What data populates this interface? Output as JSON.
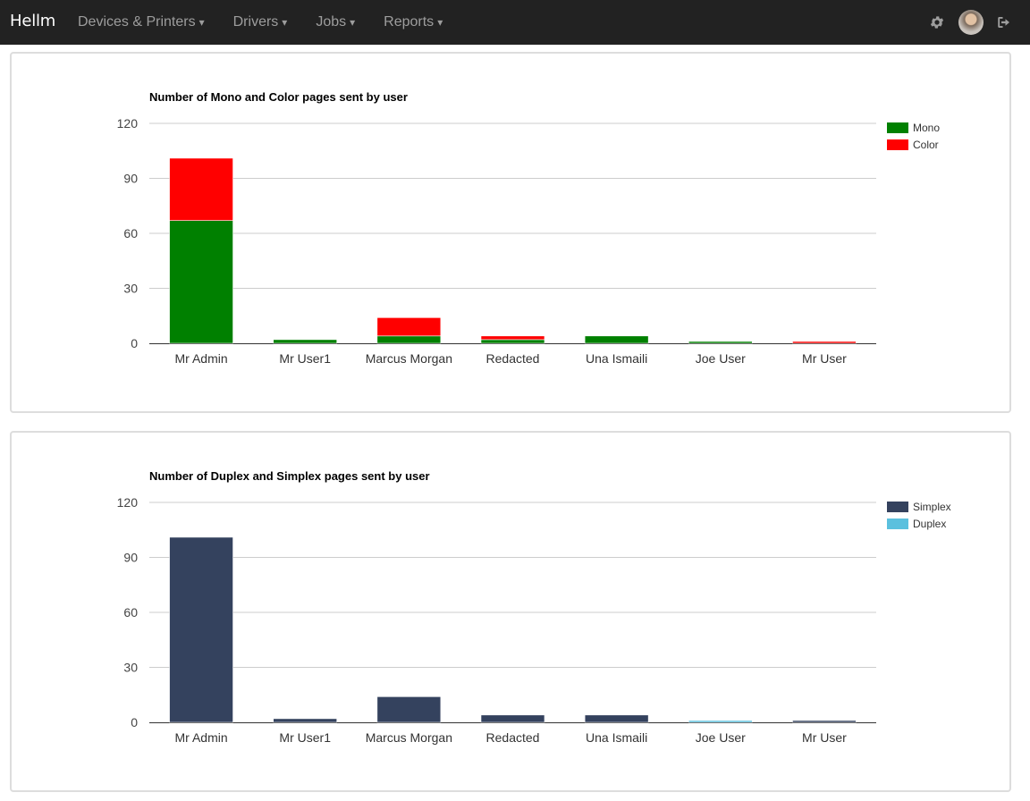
{
  "app": {
    "brand": "Hellm",
    "menu": [
      {
        "label": "Devices & Printers",
        "caret": "▾"
      },
      {
        "label": "Drivers",
        "caret": "▾"
      },
      {
        "label": "Jobs",
        "caret": "▾"
      },
      {
        "label": "Reports",
        "caret": "▾"
      }
    ],
    "icons": [
      "gear-icon",
      "avatar",
      "logout-icon"
    ]
  },
  "chart_data": [
    {
      "type": "bar",
      "stacked": true,
      "title": "Number of Mono and Color pages sent by user",
      "categories": [
        "Mr Admin",
        "Mr User1",
        "Marcus Morgan",
        "Redacted",
        "Una Ismaili",
        "Joe User",
        "Mr User"
      ],
      "series": [
        {
          "name": "Mono",
          "color": "#008000",
          "values": [
            67,
            2,
            4,
            2,
            4,
            1,
            0
          ]
        },
        {
          "name": "Color",
          "color": "#ff0000",
          "values": [
            34,
            0,
            10,
            2,
            0,
            0,
            1
          ]
        }
      ],
      "ylim": [
        0,
        120
      ],
      "yticks": [
        0,
        30,
        60,
        90,
        120
      ],
      "grid": true,
      "legend": "right"
    },
    {
      "type": "bar",
      "stacked": true,
      "title": "Number of Duplex and Simplex pages sent by user",
      "categories": [
        "Mr Admin",
        "Mr User1",
        "Marcus Morgan",
        "Redacted",
        "Una Ismaili",
        "Joe User",
        "Mr User"
      ],
      "series": [
        {
          "name": "Simplex",
          "color": "#34425e",
          "values": [
            101,
            2,
            14,
            4,
            4,
            0,
            1
          ]
        },
        {
          "name": "Duplex",
          "color": "#5bc0de",
          "values": [
            0,
            0,
            0,
            0,
            0,
            1,
            0
          ]
        }
      ],
      "ylim": [
        0,
        120
      ],
      "yticks": [
        0,
        30,
        60,
        90,
        120
      ],
      "grid": true,
      "legend": "right"
    }
  ]
}
